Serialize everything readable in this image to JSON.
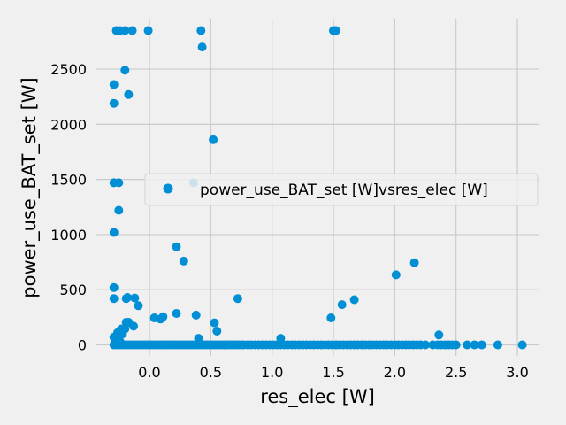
{
  "chart_data": {
    "type": "scatter",
    "xlabel": "res_elec [W]",
    "ylabel": "power_use_BAT_set [W]",
    "xlim": [
      -0.44,
      3.18
    ],
    "ylim": [
      -100,
      2950
    ],
    "x_ticks": [
      0.0,
      0.5,
      1.0,
      1.5,
      2.0,
      2.5,
      3.0
    ],
    "x_tick_labels": [
      "0.0",
      "0.5",
      "1.0",
      "1.5",
      "2.0",
      "2.5",
      "3.0"
    ],
    "y_ticks": [
      0,
      500,
      1000,
      1500,
      2000,
      2500
    ],
    "y_tick_labels": [
      "0",
      "500",
      "1000",
      "1500",
      "2000",
      "2500"
    ],
    "grid": true,
    "legend_position": "center-right",
    "color": "#008fd5",
    "series": [
      {
        "name": "power_use_BAT_set [W]vsres_elec [W]",
        "points": [
          [
            -0.27,
            2850
          ],
          [
            -0.24,
            2850
          ],
          [
            -0.2,
            2850
          ],
          [
            -0.14,
            2850
          ],
          [
            -0.01,
            2850
          ],
          [
            0.42,
            2850
          ],
          [
            1.5,
            2850
          ],
          [
            1.52,
            2850
          ],
          [
            0.43,
            2700
          ],
          [
            -0.2,
            2490
          ],
          [
            -0.29,
            2360
          ],
          [
            -0.17,
            2270
          ],
          [
            -0.29,
            2190
          ],
          [
            0.52,
            1860
          ],
          [
            -0.29,
            1470
          ],
          [
            -0.25,
            1470
          ],
          [
            0.36,
            1470
          ],
          [
            -0.25,
            1220
          ],
          [
            -0.29,
            1020
          ],
          [
            0.22,
            890
          ],
          [
            0.28,
            760
          ],
          [
            2.16,
            745
          ],
          [
            2.01,
            635
          ],
          [
            -0.29,
            520
          ],
          [
            -0.29,
            420
          ],
          [
            -0.19,
            420
          ],
          [
            -0.18,
            430
          ],
          [
            -0.12,
            425
          ],
          [
            0.72,
            420
          ],
          [
            1.67,
            410
          ],
          [
            1.57,
            365
          ],
          [
            -0.09,
            355
          ],
          [
            0.22,
            285
          ],
          [
            0.38,
            270
          ],
          [
            0.11,
            255
          ],
          [
            0.04,
            245
          ],
          [
            0.09,
            235
          ],
          [
            1.48,
            245
          ],
          [
            -0.19,
            205
          ],
          [
            -0.17,
            205
          ],
          [
            0.53,
            200
          ],
          [
            -0.13,
            170
          ],
          [
            -0.23,
            145
          ],
          [
            -0.2,
            145
          ],
          [
            0.55,
            125
          ],
          [
            -0.26,
            110
          ],
          [
            -0.22,
            100
          ],
          [
            2.36,
            90
          ],
          [
            -0.29,
            70
          ],
          [
            -0.25,
            70
          ],
          [
            0.4,
            60
          ],
          [
            1.07,
            60
          ],
          [
            -0.28,
            40
          ],
          [
            -0.24,
            30
          ],
          [
            -0.29,
            0
          ],
          [
            -0.27,
            0
          ],
          [
            -0.25,
            0
          ],
          [
            -0.23,
            0
          ],
          [
            -0.21,
            0
          ],
          [
            -0.19,
            0
          ],
          [
            -0.17,
            0
          ],
          [
            -0.15,
            0
          ],
          [
            -0.13,
            0
          ],
          [
            -0.11,
            0
          ],
          [
            -0.09,
            0
          ],
          [
            -0.07,
            0
          ],
          [
            -0.05,
            0
          ],
          [
            -0.03,
            0
          ],
          [
            -0.01,
            0
          ],
          [
            0.01,
            0
          ],
          [
            0.03,
            0
          ],
          [
            0.05,
            0
          ],
          [
            0.07,
            0
          ],
          [
            0.09,
            0
          ],
          [
            0.11,
            0
          ],
          [
            0.13,
            0
          ],
          [
            0.15,
            0
          ],
          [
            0.17,
            0
          ],
          [
            0.19,
            0
          ],
          [
            0.21,
            0
          ],
          [
            0.23,
            0
          ],
          [
            0.25,
            0
          ],
          [
            0.27,
            0
          ],
          [
            0.29,
            0
          ],
          [
            0.31,
            0
          ],
          [
            0.33,
            0
          ],
          [
            0.35,
            0
          ],
          [
            0.37,
            0
          ],
          [
            0.39,
            0
          ],
          [
            0.41,
            0
          ],
          [
            0.43,
            0
          ],
          [
            0.45,
            0
          ],
          [
            0.47,
            0
          ],
          [
            0.49,
            0
          ],
          [
            0.51,
            0
          ],
          [
            0.53,
            0
          ],
          [
            0.55,
            0
          ],
          [
            0.57,
            0
          ],
          [
            0.59,
            0
          ],
          [
            0.61,
            0
          ],
          [
            0.63,
            0
          ],
          [
            0.65,
            0
          ],
          [
            0.67,
            0
          ],
          [
            0.69,
            0
          ],
          [
            0.71,
            0
          ],
          [
            0.73,
            0
          ],
          [
            0.75,
            0
          ],
          [
            0.77,
            0
          ],
          [
            0.8,
            0
          ],
          [
            0.83,
            0
          ],
          [
            0.86,
            0
          ],
          [
            0.89,
            0
          ],
          [
            0.92,
            0
          ],
          [
            0.95,
            0
          ],
          [
            0.98,
            0
          ],
          [
            1.01,
            0
          ],
          [
            1.04,
            0
          ],
          [
            1.07,
            0
          ],
          [
            1.1,
            0
          ],
          [
            1.13,
            0
          ],
          [
            1.16,
            0
          ],
          [
            1.19,
            0
          ],
          [
            1.22,
            0
          ],
          [
            1.25,
            0
          ],
          [
            1.28,
            0
          ],
          [
            1.31,
            0
          ],
          [
            1.34,
            0
          ],
          [
            1.37,
            0
          ],
          [
            1.4,
            0
          ],
          [
            1.43,
            0
          ],
          [
            1.46,
            0
          ],
          [
            1.49,
            0
          ],
          [
            1.52,
            0
          ],
          [
            1.55,
            0
          ],
          [
            1.58,
            0
          ],
          [
            1.61,
            0
          ],
          [
            1.64,
            0
          ],
          [
            1.67,
            0
          ],
          [
            1.7,
            0
          ],
          [
            1.73,
            0
          ],
          [
            1.76,
            0
          ],
          [
            1.79,
            0
          ],
          [
            1.82,
            0
          ],
          [
            1.85,
            0
          ],
          [
            1.88,
            0
          ],
          [
            1.91,
            0
          ],
          [
            1.94,
            0
          ],
          [
            1.97,
            0
          ],
          [
            2.0,
            0
          ],
          [
            2.03,
            0
          ],
          [
            2.06,
            0
          ],
          [
            2.09,
            0
          ],
          [
            2.12,
            0
          ],
          [
            2.15,
            0
          ],
          [
            2.18,
            0
          ],
          [
            2.21,
            0
          ],
          [
            2.25,
            0
          ],
          [
            2.31,
            0
          ],
          [
            2.35,
            0
          ],
          [
            2.38,
            0
          ],
          [
            2.41,
            0
          ],
          [
            2.44,
            0
          ],
          [
            2.47,
            0
          ],
          [
            2.5,
            0
          ],
          [
            2.59,
            0
          ],
          [
            2.65,
            0
          ],
          [
            2.71,
            0
          ],
          [
            2.84,
            0
          ],
          [
            3.04,
            0
          ]
        ]
      }
    ]
  }
}
